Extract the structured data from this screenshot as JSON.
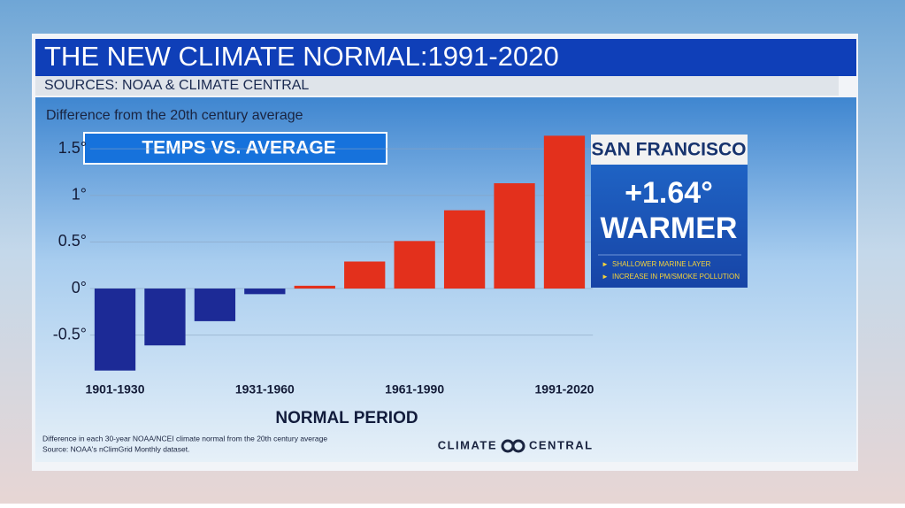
{
  "header": {
    "title": "THE NEW CLIMATE NORMAL:1991-2020",
    "subtitle": "SOURCES: NOAA & CLIMATE CENTRAL"
  },
  "chart_data": {
    "type": "bar",
    "subtitle": "Difference from the 20th century average",
    "annotation": "TEMPS VS. AVERAGE",
    "x_label": "NORMAL PERIOD",
    "categories": [
      "1901-1930",
      null,
      null,
      "1931-1960",
      null,
      null,
      "1961-1990",
      null,
      null,
      "1991-2020"
    ],
    "values": [
      -0.88,
      -0.61,
      -0.35,
      -0.06,
      0.03,
      0.29,
      0.51,
      0.84,
      1.13,
      1.64
    ],
    "positive_color": "#e3301c",
    "negative_color": "#1c2a96",
    "ylim": [
      -0.9,
      1.65
    ],
    "yticks": [
      {
        "value": 1.5,
        "label": "1.5°"
      },
      {
        "value": 1,
        "label": "1°"
      },
      {
        "value": 0.5,
        "label": "0.5°"
      },
      {
        "value": 0,
        "label": "0°"
      },
      {
        "value": -0.5,
        "label": "-0.5°"
      }
    ],
    "grid": true
  },
  "sidebar": {
    "city": "SAN FRANCISCO",
    "value_text": "+1.64°",
    "label": "WARMER",
    "bullets": [
      "SHALLOWER MARINE LAYER",
      "INCREASE IN PM/SMOKE POLLUTION"
    ]
  },
  "footer": {
    "notes": [
      "Difference in each 30-year NOAA/NCEI climate normal from the 20th century average",
      "Source: NOAA's nClimGrid Monthly dataset."
    ],
    "logo": [
      "CLIMATE",
      "CENTRAL"
    ]
  }
}
